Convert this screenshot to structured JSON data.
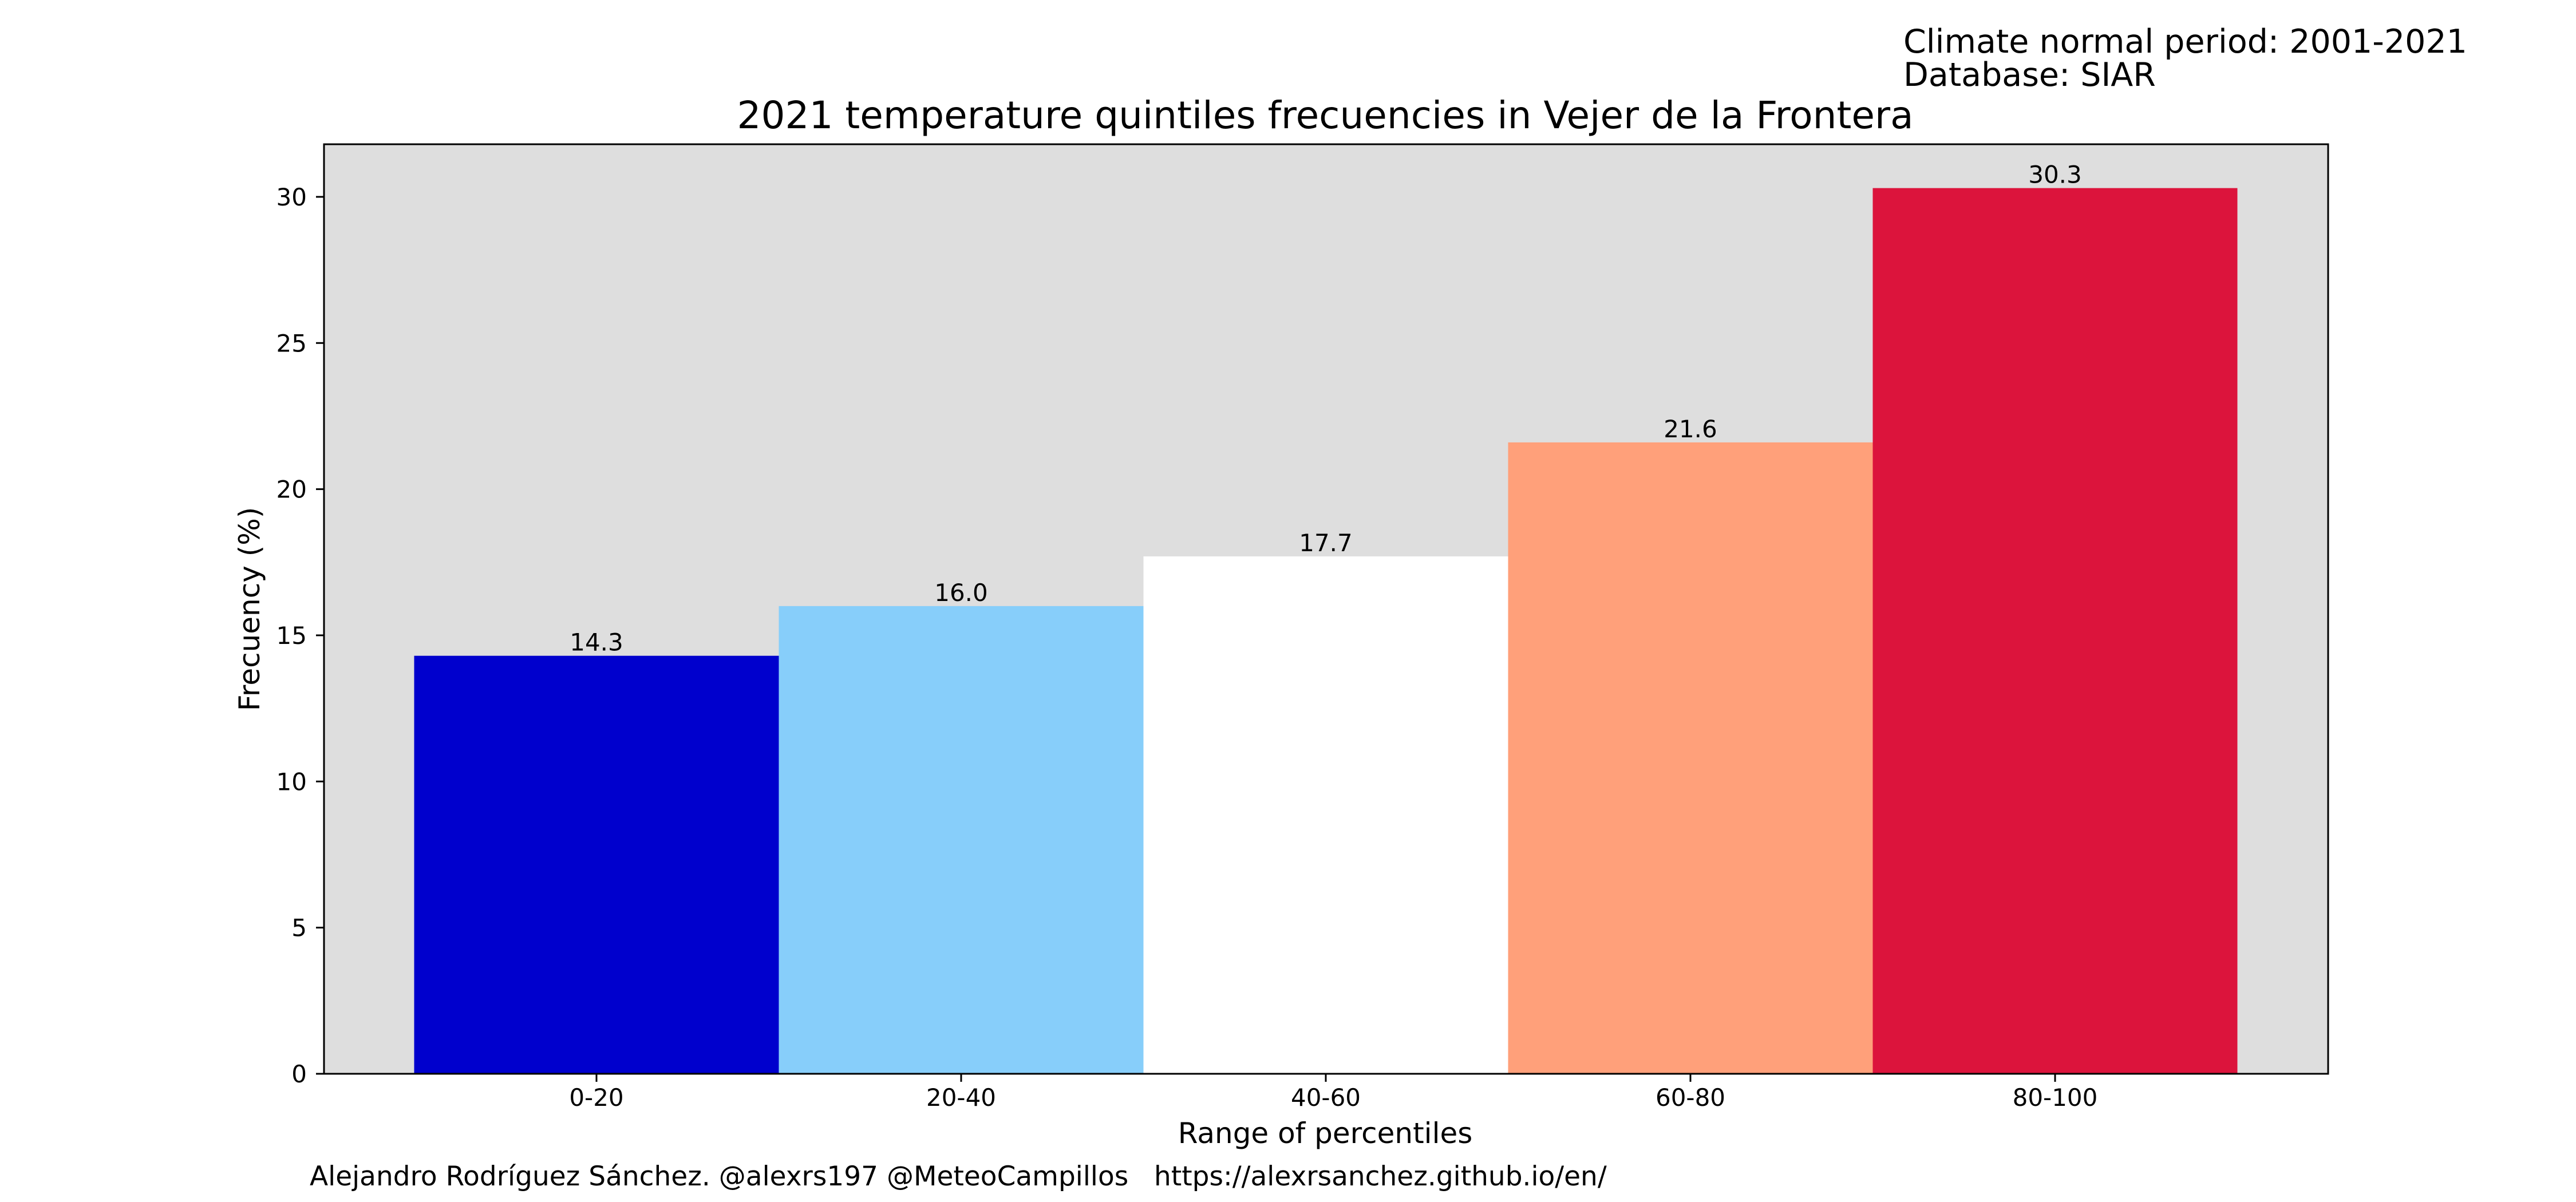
{
  "header": {
    "period_line": "Climate normal period: 2001-2021",
    "database_line": "Database: SIAR"
  },
  "credits": "Alejandro Rodríguez Sánchez. @alexrs197 @MeteoCampillos   https://alexrsanchez.github.io/en/",
  "chart_data": {
    "type": "bar",
    "title": "2021 temperature quintiles frecuencies in Vejer de la Frontera",
    "xlabel": "Range of percentiles",
    "ylabel": "Frecuency (%)",
    "categories": [
      "0-20",
      "20-40",
      "40-60",
      "60-80",
      "80-100"
    ],
    "values": [
      14.3,
      16.0,
      17.7,
      21.6,
      30.3
    ],
    "data_labels": [
      "14.3",
      "16.0",
      "17.7",
      "21.6",
      "30.3"
    ],
    "colors": [
      "#0000CD",
      "#87CEFA",
      "#FFFFFF",
      "#FFA07A",
      "#DC143C"
    ],
    "ylim": [
      0,
      31.8
    ],
    "yticks": [
      0,
      5,
      10,
      15,
      20,
      25,
      30
    ],
    "plot_background": "#DEDEDE",
    "grid": false,
    "legend": "none"
  }
}
